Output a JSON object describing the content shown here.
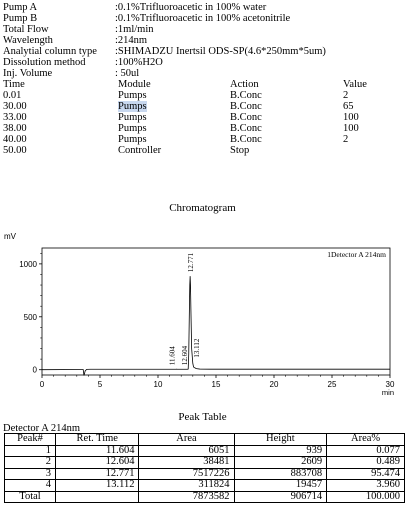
{
  "params": [
    {
      "label": "Pump A",
      "value": ":0.1%Trifluoroacetic in 100% water"
    },
    {
      "label": "Pump B",
      "value": ":0.1%Trifluoroacetic in 100% acetonitrile"
    },
    {
      "label": "Total Flow",
      "value": ":1ml/min"
    },
    {
      "label": "Wavelength",
      "value": ":214nm"
    },
    {
      "label": "Analytial column type",
      "value": ":SHIMADZU Inertsil ODS-SP(4.6*250mm*5um)"
    },
    {
      "label": "Dissolution method",
      "value": ":100%H2O"
    },
    {
      "label": "Inj. Volume",
      "value": ": 50ul"
    }
  ],
  "gradient": {
    "headers": [
      "Time",
      "Module",
      "Action",
      "Value"
    ],
    "rows": [
      [
        "0.01",
        "Pumps",
        "B.Conc",
        "2"
      ],
      [
        "30.00",
        "Pumps",
        "B.Conc",
        "65"
      ],
      [
        "33.00",
        "Pumps",
        "B.Conc",
        "100"
      ],
      [
        "38.00",
        "Pumps",
        "B.Conc",
        "100"
      ],
      [
        "40.00",
        "Pumps",
        "B.Conc",
        "2"
      ],
      [
        "50.00",
        "Controller",
        "Stop",
        ""
      ]
    ]
  },
  "chromatogram_title": "Chromatogram",
  "chart_data": {
    "type": "line",
    "title": "Chromatogram",
    "ylabel": "mV",
    "xlabel": "min",
    "xlim": [
      0,
      30
    ],
    "ylim": [
      -50,
      1150
    ],
    "xticks": [
      0,
      5,
      10,
      15,
      20,
      25,
      30
    ],
    "yticks": [
      0,
      500,
      1000
    ],
    "legend": "1Detector A 214nm",
    "series": [
      {
        "name": "1Detector A 214nm",
        "x": [
          0,
          3.4,
          3.55,
          3.62,
          3.72,
          3.85,
          4.2,
          6,
          10,
          11.4,
          11.55,
          11.604,
          11.66,
          11.8,
          12.3,
          12.55,
          12.604,
          12.65,
          12.71,
          12.74,
          12.771,
          12.8,
          12.84,
          12.9,
          13.0,
          13.06,
          13.112,
          13.17,
          13.3,
          13.6,
          14.5,
          18,
          24,
          30
        ],
        "y": [
          0,
          2,
          2,
          -55,
          -12,
          3,
          4,
          4,
          4,
          4,
          4,
          5,
          4,
          4,
          4,
          5,
          6,
          150,
          600,
          800,
          884,
          800,
          550,
          200,
          60,
          28,
          20,
          18,
          10,
          6,
          5,
          5,
          5,
          5
        ]
      }
    ],
    "peak_labels": [
      {
        "x": 11.604,
        "y": 5,
        "text": "11.604"
      },
      {
        "x": 12.604,
        "y": 6,
        "text": "12.604"
      },
      {
        "x": 12.771,
        "y": 884,
        "text": "12.771"
      },
      {
        "x": 13.112,
        "y": 20,
        "text": "13.112"
      }
    ]
  },
  "peak_table": {
    "title": "Peak Table",
    "detector": "Detector A 214nm",
    "headers": [
      "Peak#",
      "Ret. Time",
      "Area",
      "Height",
      "Area%"
    ],
    "rows": [
      [
        "1",
        "11.604",
        "6051",
        "939",
        "0.077"
      ],
      [
        "2",
        "12.604",
        "38481",
        "2609",
        "0.489"
      ],
      [
        "3",
        "12.771",
        "7517226",
        "883708",
        "95.474"
      ],
      [
        "4",
        "13.112",
        "311824",
        "19457",
        "3.960"
      ]
    ],
    "total": [
      "Total",
      "",
      "7873582",
      "906714",
      "100.000"
    ]
  }
}
